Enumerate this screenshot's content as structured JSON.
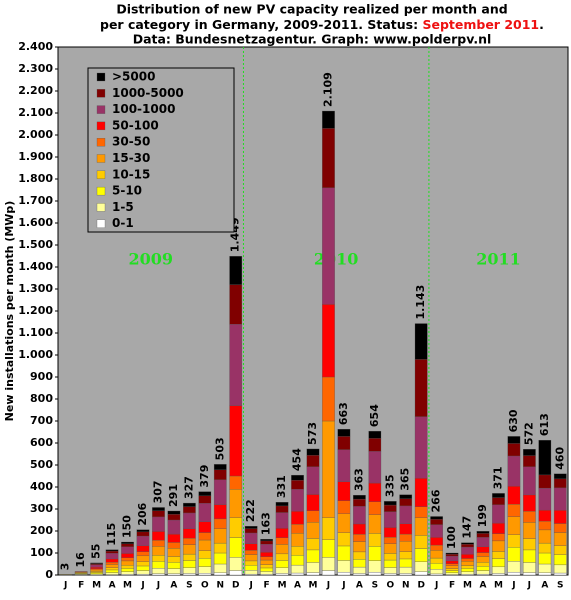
{
  "chart_data": {
    "type": "stacked_bar",
    "title_lines": [
      "Distribution of new PV capacity realized per month and",
      "per category in Germany, 2009-2011. Status: ",
      "Data: Bundesnetzagentur. Graph: www.polderpv.nl"
    ],
    "status": "September 2011",
    "status_end": ".",
    "status_color": "#ee1111",
    "y_label": "New installations per month (MWp)",
    "year_labels": [
      "2009",
      "2010",
      "2011"
    ],
    "year_color": "#22dd22",
    "categories": [
      "J",
      "F",
      "M",
      "A",
      "M",
      "J",
      "J",
      "A",
      "S",
      "O",
      "N",
      "D",
      "J",
      "F",
      "M",
      "A",
      "M",
      "J",
      "J",
      "A",
      "S",
      "O",
      "N",
      "D",
      "J",
      "F",
      "M",
      "A",
      "M",
      "J",
      "J",
      "A",
      "S"
    ],
    "ylim": [
      0,
      2400
    ],
    "yticks": [
      0,
      100,
      200,
      300,
      400,
      500,
      600,
      700,
      800,
      900,
      {
        "value": 1000,
        "label": "1.000"
      },
      {
        "value": 1100,
        "label": "1.100"
      },
      {
        "value": 1200,
        "label": "1.200"
      },
      {
        "value": 1300,
        "label": "1.300"
      },
      {
        "value": 1400,
        "label": "1.400"
      },
      {
        "value": 1500,
        "label": "1.500"
      },
      {
        "value": 1600,
        "label": "1.600"
      },
      {
        "value": 1700,
        "label": "1.700"
      },
      {
        "value": 1800,
        "label": "1.800"
      },
      {
        "value": 1900,
        "label": "1.900"
      },
      {
        "value": 2000,
        "label": "2.000"
      },
      {
        "value": 2100,
        "label": "2.100"
      },
      {
        "value": 2200,
        "label": "2.200"
      },
      {
        "value": 2300,
        "label": "2.300"
      },
      {
        "value": 2400,
        "label": "2.400"
      }
    ],
    "grid": false,
    "legend_position": "upper left",
    "series": [
      {
        "name": "0-1",
        "color": "#ffffff",
        "values": [
          0,
          1,
          1,
          2,
          3,
          4,
          6,
          6,
          7,
          8,
          10,
          20,
          4,
          3,
          7,
          9,
          11,
          20,
          13,
          7,
          13,
          7,
          7,
          15,
          5,
          2,
          3,
          4,
          7,
          13,
          11,
          10,
          9
        ]
      },
      {
        "name": "1-5",
        "color": "#ffff99",
        "values": [
          1,
          3,
          4,
          9,
          12,
          16,
          25,
          23,
          26,
          30,
          40,
          60,
          18,
          13,
          26,
          36,
          46,
          60,
          53,
          29,
          52,
          27,
          29,
          45,
          21,
          8,
          12,
          16,
          30,
          50,
          46,
          40,
          37
        ]
      },
      {
        "name": "5-10",
        "color": "#ffff00",
        "values": [
          1,
          3,
          6,
          12,
          15,
          21,
          31,
          29,
          33,
          38,
          50,
          90,
          22,
          16,
          33,
          45,
          57,
          80,
          66,
          36,
          65,
          34,
          37,
          60,
          27,
          10,
          15,
          20,
          37,
          63,
          57,
          50,
          46
        ]
      },
      {
        "name": "10-15",
        "color": "#ffcc00",
        "values": [
          0,
          2,
          5,
          10,
          14,
          19,
          28,
          26,
          29,
          34,
          45,
          90,
          20,
          15,
          30,
          41,
          52,
          100,
          60,
          33,
          59,
          30,
          33,
          60,
          24,
          9,
          13,
          18,
          33,
          57,
          51,
          45,
          41
        ]
      },
      {
        "name": "15-30",
        "color": "#ff9900",
        "values": [
          1,
          3,
          7,
          15,
          20,
          27,
          40,
          38,
          43,
          49,
          65,
          130,
          29,
          21,
          43,
          59,
          74,
          440,
          86,
          47,
          85,
          44,
          47,
          80,
          35,
          13,
          19,
          26,
          48,
          82,
          74,
          60,
          60
        ]
      },
      {
        "name": "30-50",
        "color": "#ff6600",
        "values": [
          0,
          2,
          5,
          10,
          14,
          19,
          28,
          26,
          29,
          34,
          45,
          60,
          20,
          15,
          30,
          41,
          52,
          200,
          60,
          33,
          59,
          30,
          33,
          50,
          24,
          9,
          13,
          18,
          33,
          57,
          51,
          40,
          41
        ]
      },
      {
        "name": "50-100",
        "color": "#ff0000",
        "values": [
          0,
          2,
          7,
          15,
          20,
          27,
          40,
          38,
          43,
          49,
          65,
          320,
          29,
          21,
          43,
          59,
          74,
          330,
          86,
          47,
          85,
          44,
          47,
          130,
          35,
          13,
          19,
          26,
          48,
          82,
          74,
          50,
          60
        ]
      },
      {
        "name": "100-1000",
        "color": "#993366",
        "values": [
          0,
          0,
          12,
          26,
          30,
          44,
          66,
          64,
          72,
          84,
          113,
          370,
          49,
          36,
          72,
          100,
          126,
          530,
          146,
          80,
          144,
          72,
          81,
          280,
          58,
          22,
          33,
          43,
          83,
          137,
          128,
          100,
          102
        ]
      },
      {
        "name": "1000-5000",
        "color": "#800000",
        "values": [
          0,
          0,
          5,
          10,
          14,
          19,
          28,
          26,
          29,
          34,
          45,
          180,
          20,
          15,
          30,
          41,
          52,
          270,
          60,
          33,
          59,
          30,
          33,
          260,
          24,
          9,
          13,
          18,
          33,
          57,
          51,
          60,
          41
        ]
      },
      {
        "name": ">5000",
        "color": "#000000",
        "values": [
          0,
          0,
          3,
          6,
          8,
          10,
          15,
          15,
          16,
          19,
          25,
          129,
          11,
          8,
          17,
          23,
          29,
          79,
          33,
          18,
          33,
          17,
          18,
          163,
          13,
          5,
          7,
          10,
          19,
          32,
          29,
          158,
          23
        ]
      }
    ],
    "totals": {
      "values": [
        3,
        16,
        55,
        115,
        150,
        206,
        307,
        291,
        327,
        379,
        503,
        1449,
        222,
        163,
        331,
        454,
        573,
        2109,
        663,
        363,
        654,
        335,
        365,
        1143,
        266,
        100,
        147,
        199,
        371,
        630,
        572,
        613,
        460
      ],
      "value_labels": [
        "3",
        "16",
        "55",
        "115",
        "150",
        "206",
        "307",
        "291",
        "327",
        "379",
        "503",
        "1.449",
        "222",
        "163",
        "331",
        "454",
        "573",
        "2.109",
        "663",
        "363",
        "654",
        "335",
        "365",
        "1.143",
        "266",
        "100",
        "147",
        "199",
        "371",
        "630",
        "572",
        "613",
        "460"
      ]
    }
  }
}
